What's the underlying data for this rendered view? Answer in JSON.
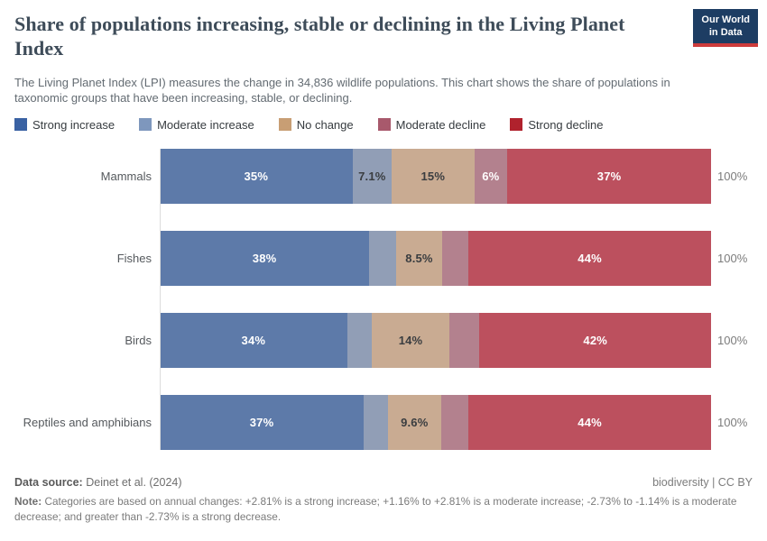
{
  "header": {
    "title": "Share of populations increasing, stable or declining in the Living Planet Index",
    "subtitle": "The Living Planet Index (LPI) measures the change in 34,836 wildlife populations. This chart shows the share of populations in taxonomic groups that have been increasing, stable, or declining.",
    "logo": {
      "line1": "Our World",
      "line2": "in Data"
    }
  },
  "legend": [
    {
      "label": "Strong increase",
      "color": "#3a62a3",
      "bar_color": "#5d7aa9"
    },
    {
      "label": "Moderate increase",
      "color": "#7e97bd",
      "bar_color": "#919eb6"
    },
    {
      "label": "No change",
      "color": "#c89e74",
      "bar_color": "#c9ab92"
    },
    {
      "label": "Moderate decline",
      "color": "#a8596c",
      "bar_color": "#b3818e"
    },
    {
      "label": "Strong decline",
      "color": "#b0222d",
      "bar_color": "#bc505e"
    }
  ],
  "chart_data": {
    "type": "bar",
    "orientation": "horizontal-stacked",
    "title": "Share of populations increasing, stable or declining in the Living Planet Index",
    "categories": [
      "Mammals",
      "Fishes",
      "Birds",
      "Reptiles and amphibians"
    ],
    "series": [
      {
        "name": "Strong increase",
        "values": [
          35,
          38,
          34,
          37
        ]
      },
      {
        "name": "Moderate increase",
        "values": [
          7.1,
          4.8,
          4.5,
          4.4
        ]
      },
      {
        "name": "No change",
        "values": [
          15,
          8.5,
          14,
          9.6
        ]
      },
      {
        "name": "Moderate decline",
        "values": [
          6,
          4.7,
          5.5,
          5
        ]
      },
      {
        "name": "Strong decline",
        "values": [
          37,
          44,
          42,
          44
        ]
      }
    ],
    "xlim": [
      0,
      100
    ],
    "grid": false,
    "legend_position": "top",
    "unit": "%"
  },
  "rows": [
    {
      "label": "Mammals",
      "total_label": "100%",
      "segments": [
        {
          "value": 35,
          "label": "35%",
          "text": "#ffffff"
        },
        {
          "value": 7.1,
          "label": "7.1%",
          "text": "#3a3d40"
        },
        {
          "value": 15,
          "label": "15%",
          "text": "#3a3d40"
        },
        {
          "value": 6,
          "label": "6%",
          "text": "#ffffff"
        },
        {
          "value": 37,
          "label": "37%",
          "text": "#ffffff"
        }
      ]
    },
    {
      "label": "Fishes",
      "total_label": "100%",
      "segments": [
        {
          "value": 38,
          "label": "38%",
          "text": "#ffffff"
        },
        {
          "value": 4.8,
          "label": "",
          "text": "#3a3d40"
        },
        {
          "value": 8.5,
          "label": "8.5%",
          "text": "#3a3d40"
        },
        {
          "value": 4.7,
          "label": "",
          "text": "#ffffff"
        },
        {
          "value": 44,
          "label": "44%",
          "text": "#ffffff"
        }
      ]
    },
    {
      "label": "Birds",
      "total_label": "100%",
      "segments": [
        {
          "value": 34,
          "label": "34%",
          "text": "#ffffff"
        },
        {
          "value": 4.5,
          "label": "",
          "text": "#3a3d40"
        },
        {
          "value": 14,
          "label": "14%",
          "text": "#3a3d40"
        },
        {
          "value": 5.5,
          "label": "",
          "text": "#ffffff"
        },
        {
          "value": 42,
          "label": "42%",
          "text": "#ffffff"
        }
      ]
    },
    {
      "label": "Reptiles and amphibians",
      "total_label": "100%",
      "segments": [
        {
          "value": 37,
          "label": "37%",
          "text": "#ffffff"
        },
        {
          "value": 4.4,
          "label": "",
          "text": "#3a3d40"
        },
        {
          "value": 9.6,
          "label": "9.6%",
          "text": "#3a3d40"
        },
        {
          "value": 5,
          "label": "",
          "text": "#ffffff"
        },
        {
          "value": 44,
          "label": "44%",
          "text": "#ffffff"
        }
      ]
    }
  ],
  "footer": {
    "data_source_label": "Data source:",
    "data_source_value": "Deinet et al. (2024)",
    "attribution": "biodiversity | CC BY",
    "note_label": "Note:",
    "note_text": "Categories are based on annual changes: +2.81% is a strong increase; +1.16% to +2.81% is a moderate increase; -2.73% to -1.14% is a moderate decrease; and greater than -2.73% is a strong decrease."
  }
}
